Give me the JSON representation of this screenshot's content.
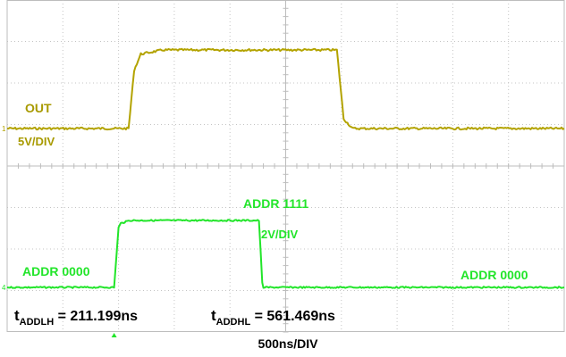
{
  "chart_data": {
    "type": "line",
    "grid": true,
    "xlabel": "500ns/DIV",
    "series": [
      {
        "name": "OUT",
        "color": "#b3a300",
        "scale_label": "5V/DIV",
        "marker": "1",
        "x": [
          0,
          1090,
          1140,
          1200,
          1400,
          2800,
          2960,
          3020,
          3100,
          5000
        ],
        "y": [
          0,
          0,
          3.6,
          4.6,
          4.85,
          4.85,
          4.85,
          0.6,
          0,
          0
        ]
      },
      {
        "name": "ADDR",
        "color": "#22e52a",
        "scale_label": "2V/DIV",
        "marker": "4",
        "x": [
          0,
          960,
          1000,
          1020,
          1100,
          2260,
          2290,
          2300,
          5000
        ],
        "y": [
          0,
          0,
          4.2,
          4.5,
          4.7,
          4.7,
          0.3,
          0,
          0
        ]
      }
    ],
    "annotations": {
      "out_label": "OUT",
      "out_scale": "5V/DIV",
      "addr_high": "ADDR 1111",
      "addr_scale": "2V/DIV",
      "addr_low_left": "ADDR 0000",
      "addr_low_right": "ADDR 0000",
      "t_lh_main": "t",
      "t_lh_sub": "ADDLH",
      "t_lh_value": " = 211.199ns",
      "t_hl_main": "t",
      "t_hl_sub": "ADDHL",
      "t_hl_value": " = 561.469ns"
    }
  }
}
